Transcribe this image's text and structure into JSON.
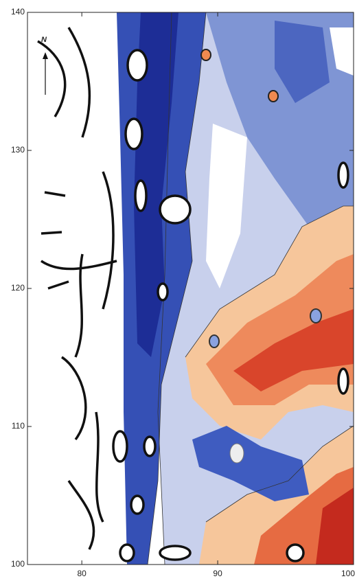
{
  "chart_data": {
    "type": "contour",
    "annotation": "N",
    "xlim": [
      76,
      100
    ],
    "xticks": [
      80,
      90,
      100
    ],
    "ylim": [
      100,
      140
    ],
    "yticks": [
      100,
      110,
      120,
      130,
      140
    ]
  }
}
